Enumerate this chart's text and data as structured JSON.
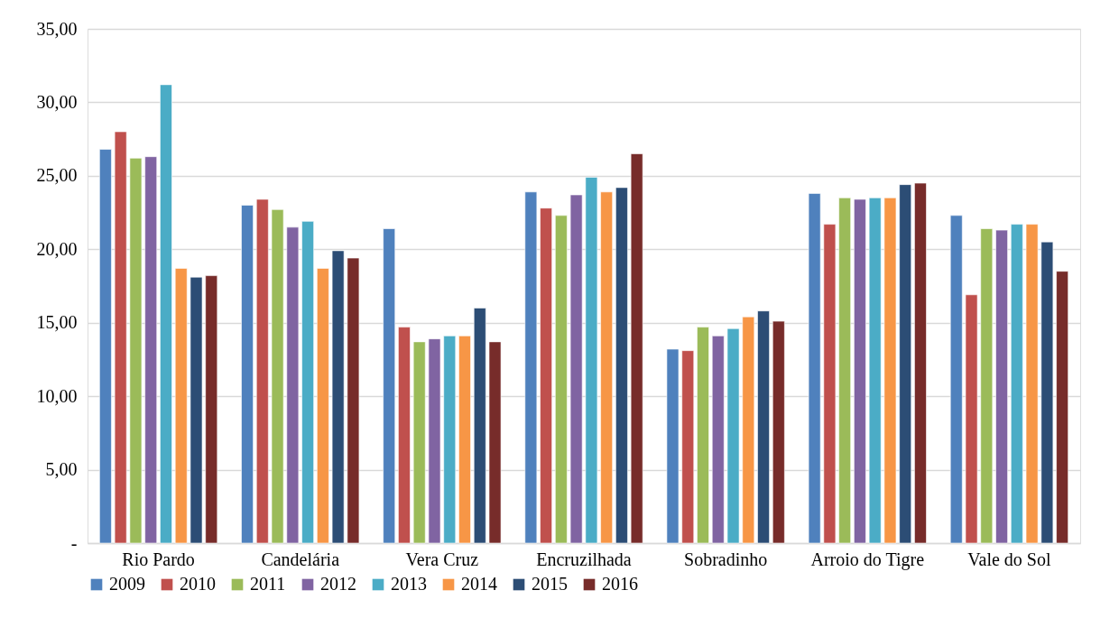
{
  "chart_data": {
    "type": "bar",
    "categories": [
      "Rio Pardo",
      "Candelária",
      "Vera Cruz",
      "Encruzilhada",
      "Sobradinho",
      "Arroio do Tigre",
      "Vale do Sol"
    ],
    "series": [
      {
        "name": "2009",
        "color": "#4f81bd",
        "values": [
          26.8,
          23.0,
          21.4,
          23.9,
          13.2,
          23.8,
          22.3
        ]
      },
      {
        "name": "2010",
        "color": "#c0504d",
        "values": [
          28.0,
          23.4,
          14.7,
          22.8,
          13.1,
          21.7,
          16.9
        ]
      },
      {
        "name": "2011",
        "color": "#9bbb59",
        "values": [
          26.2,
          22.7,
          13.7,
          22.3,
          14.7,
          23.5,
          21.4
        ]
      },
      {
        "name": "2012",
        "color": "#8064a2",
        "values": [
          26.3,
          21.5,
          13.9,
          23.7,
          14.1,
          23.4,
          21.3
        ]
      },
      {
        "name": "2013",
        "color": "#4bacc6",
        "values": [
          31.2,
          21.9,
          14.1,
          24.9,
          14.6,
          23.5,
          21.7
        ]
      },
      {
        "name": "2014",
        "color": "#f79646",
        "values": [
          18.7,
          18.7,
          14.1,
          23.9,
          15.4,
          23.5,
          21.7
        ]
      },
      {
        "name": "2015",
        "color": "#2c4d75",
        "values": [
          18.1,
          19.9,
          16.0,
          24.2,
          15.8,
          24.4,
          20.5
        ]
      },
      {
        "name": "2016",
        "color": "#772c2a",
        "values": [
          18.2,
          19.4,
          13.7,
          26.5,
          15.1,
          24.5,
          18.5
        ]
      }
    ],
    "ylim": [
      0,
      35
    ],
    "yticks": [
      {
        "value": 0,
        "label": "-"
      },
      {
        "value": 5,
        "label": "5,00"
      },
      {
        "value": 10,
        "label": "10,00"
      },
      {
        "value": 15,
        "label": "15,00"
      },
      {
        "value": 20,
        "label": "20,00"
      },
      {
        "value": 25,
        "label": "25,00"
      },
      {
        "value": 30,
        "label": "30,00"
      },
      {
        "value": 35,
        "label": "35,00"
      }
    ],
    "grid": "y",
    "legend": "bottom"
  }
}
